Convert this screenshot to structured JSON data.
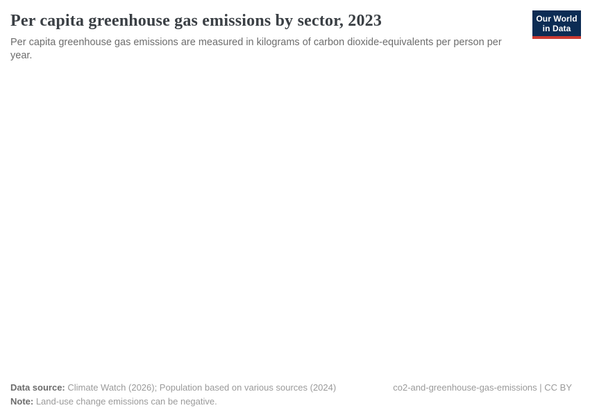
{
  "header": {
    "title": "Per capita greenhouse gas emissions by sector, 2023",
    "subtitle": "Per capita greenhouse gas emissions are measured in kilograms of carbon dioxide-equivalents per person per year."
  },
  "logo": {
    "line1": "Our World",
    "line2": "in Data",
    "background_color": "#0c2c54",
    "stripe_color": "#cb3a31",
    "text_color": "#ffffff"
  },
  "footer": {
    "data_source_label": "Data source:",
    "data_source_text": " Climate Watch (2026); Population based on various sources (2024)",
    "note_label": "Note:",
    "note_text": " Land-use change emissions can be negative.",
    "right_slug": "co2-and-greenhouse-gas-emissions",
    "right_separator": " | ",
    "right_license": "CC BY"
  },
  "colors": {
    "title": "#3a3f44",
    "subtitle": "#6d6d6d",
    "footer_label": "#6c6c6c",
    "footer_text": "#9a9a9a",
    "background": "#ffffff"
  },
  "chart_data": {
    "type": "bar",
    "title": "Per capita greenhouse gas emissions by sector, 2023",
    "subtitle": "Per capita greenhouse gas emissions are measured in kilograms of carbon dioxide-equivalents per person per year.",
    "unit": "kilograms of carbon dioxide-equivalents per person per year",
    "year": 2023,
    "categories": [],
    "series": [],
    "plot_area_empty": true,
    "note": "Land-use change emissions can be negative.",
    "sources": "Climate Watch (2026); Population based on various sources (2024)"
  }
}
